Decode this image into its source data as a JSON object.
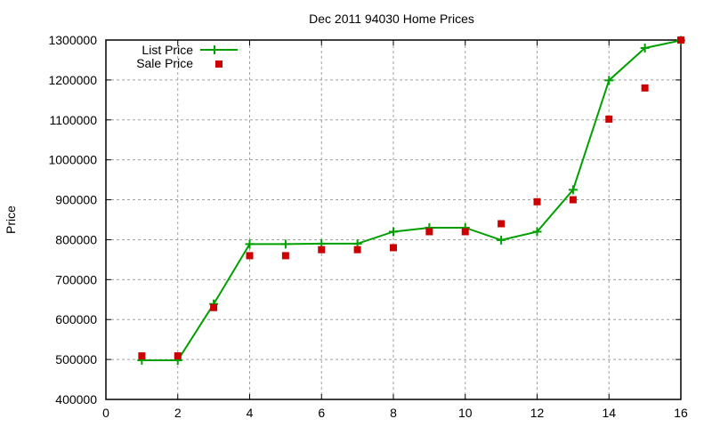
{
  "chart_data": {
    "type": "line",
    "title": "Dec 2011 94030 Home Prices",
    "xlabel": "",
    "ylabel": "Price",
    "xlim": [
      0,
      16
    ],
    "ylim": [
      400000,
      1300000
    ],
    "x_ticks": [
      0,
      2,
      4,
      6,
      8,
      10,
      12,
      14,
      16
    ],
    "y_ticks": [
      400000,
      500000,
      600000,
      700000,
      800000,
      900000,
      1000000,
      1100000,
      1200000,
      1300000
    ],
    "grid": true,
    "legend_position": "top-left",
    "x": [
      1,
      2,
      3,
      4,
      5,
      6,
      7,
      8,
      9,
      10,
      11,
      12,
      13,
      14,
      15,
      16
    ],
    "series": [
      {
        "name": "List Price",
        "style": "linespoints",
        "marker": "plus",
        "color": "#00a000",
        "values": [
          498000,
          498000,
          639000,
          789000,
          789000,
          790000,
          790000,
          820000,
          830000,
          830000,
          799000,
          820000,
          925000,
          1199000,
          1280000,
          1299000
        ]
      },
      {
        "name": "Sale Price",
        "style": "points",
        "marker": "square",
        "color": "#cc0000",
        "values": [
          509000,
          509000,
          630000,
          760000,
          760000,
          775000,
          775000,
          780000,
          820000,
          820000,
          840000,
          895000,
          900000,
          1102000,
          1180000,
          1300000
        ]
      }
    ]
  },
  "legend": {
    "list_label": "List Price",
    "sale_label": "Sale Price"
  }
}
